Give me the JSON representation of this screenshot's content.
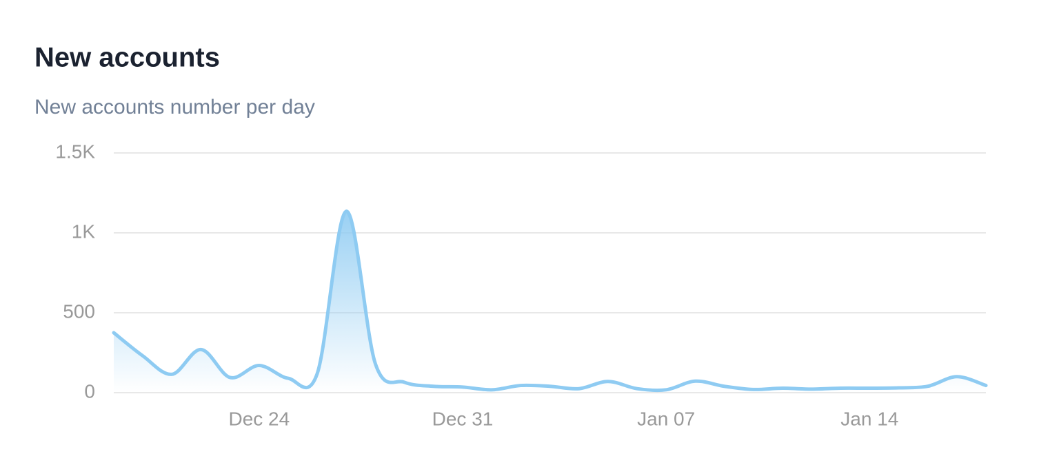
{
  "chart_data": {
    "type": "area",
    "title": "New accounts",
    "subtitle": "New accounts number per day",
    "categories": [
      null,
      null,
      null,
      null,
      null,
      "Dec 24",
      null,
      null,
      null,
      null,
      null,
      null,
      "Dec 31",
      null,
      null,
      null,
      null,
      null,
      null,
      "Jan 07",
      null,
      null,
      null,
      null,
      null,
      null,
      "Jan 14",
      null,
      null,
      null,
      null
    ],
    "series": [
      {
        "name": "New accounts",
        "color": "#8ecbf2",
        "values": [
          375,
          230,
          115,
          270,
          95,
          170,
          90,
          120,
          1135,
          180,
          65,
          40,
          35,
          18,
          45,
          40,
          25,
          70,
          25,
          18,
          72,
          40,
          20,
          28,
          22,
          28,
          28,
          30,
          40,
          100,
          45
        ]
      }
    ],
    "ylim": [
      0,
      1500
    ],
    "yticks": [
      0,
      500,
      {
        "value": 1000,
        "label": "1K"
      },
      {
        "value": 1500,
        "label": "1.5K"
      }
    ],
    "grid": true
  }
}
